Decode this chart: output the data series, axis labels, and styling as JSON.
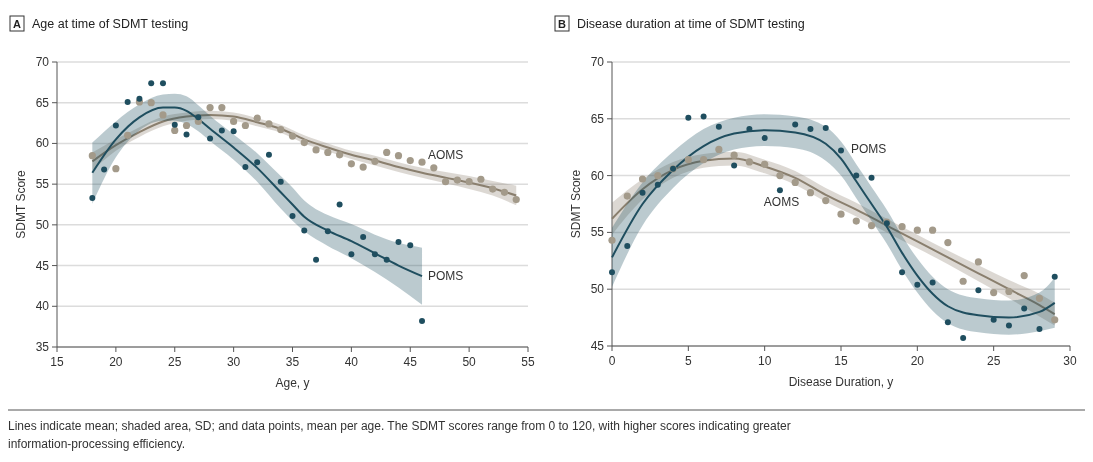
{
  "chart_data": [
    {
      "type": "scatter",
      "title": "Age at time of SDMT testing",
      "xlabel": "Age, y",
      "ylabel": "SDMT Score",
      "xlim": [
        15,
        55
      ],
      "xticks": [
        15,
        20,
        25,
        30,
        35,
        40,
        45,
        50,
        55
      ],
      "ylim": [
        35,
        70
      ],
      "yticks": [
        35,
        40,
        45,
        50,
        55,
        60,
        65,
        70
      ],
      "grid": "y",
      "marker": "circle",
      "annotations": [
        "A"
      ],
      "series": [
        {
          "type": "line",
          "name": "AOMS",
          "color": "#8a7f6e",
          "marker": "none",
          "x": [
            18,
            20,
            22,
            24,
            26,
            28,
            30,
            32,
            34,
            36,
            38,
            40,
            42,
            44,
            46,
            48,
            50,
            52,
            54
          ],
          "values": [
            57.8,
            59.8,
            61.4,
            62.7,
            63.3,
            63.5,
            63.3,
            62.6,
            61.8,
            60.5,
            59.5,
            58.6,
            57.9,
            57.1,
            56.4,
            55.8,
            55.2,
            54.5,
            53.6
          ],
          "lower": [
            56.7,
            59.1,
            60.8,
            62.1,
            62.8,
            63,
            62.8,
            62.1,
            61.3,
            60,
            59,
            58.1,
            57.3,
            56.5,
            55.8,
            55.1,
            54.4,
            53.6,
            52.4
          ],
          "upper": [
            58.9,
            60.5,
            62,
            63.3,
            63.8,
            64,
            63.8,
            63.1,
            62.3,
            61,
            60,
            59.1,
            58.5,
            57.7,
            57,
            56.5,
            56,
            55.4,
            54.8
          ]
        },
        {
          "type": "line",
          "name": "POMS",
          "color": "#1f4e5f",
          "marker": "none",
          "x": [
            18,
            20,
            22,
            24,
            25,
            26,
            27,
            28,
            30,
            32,
            34,
            35,
            36,
            38,
            40,
            42,
            44,
            46
          ],
          "values": [
            56.4,
            60.5,
            63.2,
            64.4,
            64.4,
            64,
            63,
            61.8,
            59.5,
            57,
            54,
            52.5,
            51,
            49.3,
            48,
            46.5,
            45,
            43.7
          ],
          "lower": [
            52.6,
            58.3,
            61.6,
            62.8,
            62.8,
            62.4,
            61.5,
            60.3,
            58,
            55.3,
            52,
            50.5,
            49.2,
            47.4,
            45.9,
            44.2,
            42.3,
            40.2
          ],
          "upper": [
            60.1,
            62.7,
            64.8,
            66,
            66.1,
            65.8,
            64.7,
            63.4,
            61.1,
            58.8,
            56,
            54.6,
            53,
            51.2,
            50.1,
            48.8,
            47.8,
            47.2
          ]
        },
        {
          "type": "scatter",
          "color": "#a39a8a",
          "x": [
            18,
            20,
            21,
            22,
            23,
            24,
            25,
            26,
            27,
            28,
            29,
            30,
            31,
            32,
            33,
            34,
            35,
            36,
            37,
            38,
            39,
            40,
            41,
            42,
            43,
            44,
            45,
            46,
            47,
            48,
            49,
            50,
            51,
            52,
            53,
            54
          ],
          "values": [
            58.5,
            56.9,
            61,
            65.1,
            65,
            63.5,
            61.6,
            62.2,
            62.7,
            64.4,
            64.4,
            62.7,
            62.2,
            63.1,
            62.4,
            61.7,
            60.9,
            60.1,
            59.2,
            58.9,
            58.6,
            57.5,
            57.1,
            57.8,
            58.9,
            58.5,
            57.9,
            57.7,
            57,
            55.3,
            55.5,
            55.3,
            55.6,
            54.4,
            54,
            53.1
          ]
        },
        {
          "type": "scatter",
          "color": "#1f4e5f",
          "x": [
            18,
            19,
            20,
            21,
            22,
            23,
            24,
            25,
            26,
            27,
            28,
            29,
            30,
            31,
            32,
            33,
            34,
            35,
            36,
            37,
            38,
            39,
            40,
            41,
            42,
            43,
            44,
            45,
            46
          ],
          "values": [
            53.3,
            56.8,
            62.2,
            65.1,
            65.5,
            67.4,
            67.4,
            62.3,
            61.1,
            63.2,
            60.6,
            61.6,
            61.5,
            57.1,
            57.7,
            58.6,
            55.3,
            51.1,
            49.3,
            45.7,
            49.2,
            52.5,
            46.4,
            48.5,
            46.4,
            45.7,
            47.9,
            47.5,
            38.2
          ]
        }
      ]
    },
    {
      "type": "scatter",
      "title": "Disease duration at time of SDMT testing",
      "xlabel": "Disease Duration, y",
      "ylabel": "SDMT Score",
      "xlim": [
        0,
        30
      ],
      "xticks": [
        0,
        5,
        10,
        15,
        20,
        25,
        30
      ],
      "ylim": [
        45,
        70
      ],
      "yticks": [
        45,
        50,
        55,
        60,
        65,
        70
      ],
      "grid": "y",
      "marker": "circle",
      "annotations": [
        "B",
        "Lines indicate mean; shaded area, SD; and data points, mean per age. The SDMT scores range from 0 to 120, with higher scores indicating greater information-processing efficiency."
      ],
      "series": [
        {
          "type": "line",
          "name": "AOMS",
          "color": "#8a7f6e",
          "marker": "none",
          "x": [
            0,
            2,
            4,
            6,
            8,
            10,
            12,
            14,
            16,
            18,
            20,
            22,
            24,
            26,
            28,
            29
          ],
          "values": [
            56.2,
            58.8,
            60.5,
            61.3,
            61.5,
            60.8,
            59.8,
            58.3,
            57,
            55.6,
            54.2,
            52.8,
            51.4,
            50,
            48.6,
            47.8
          ],
          "lower": [
            54.8,
            57.9,
            59.8,
            60.7,
            60.9,
            60.2,
            59.2,
            57.7,
            56.4,
            55,
            53.6,
            52.2,
            50.7,
            49.2,
            47.6,
            46.8
          ],
          "upper": [
            57.6,
            59.7,
            61.2,
            61.9,
            62.1,
            61.4,
            60.4,
            58.9,
            57.6,
            56.2,
            54.8,
            53.4,
            52.1,
            50.8,
            49.6,
            48.8
          ]
        },
        {
          "type": "line",
          "name": "POMS",
          "color": "#1f4e5f",
          "marker": "none",
          "x": [
            0,
            2,
            4,
            6,
            8,
            10,
            12,
            14,
            15,
            16,
            17,
            18,
            19,
            20,
            21,
            22,
            24,
            26,
            28,
            29
          ],
          "values": [
            52.8,
            57.5,
            60.5,
            62.6,
            63.7,
            64,
            63.8,
            62.8,
            61.5,
            59.5,
            57.5,
            55.5,
            53.2,
            51.2,
            49.6,
            48.5,
            47.7,
            47.5,
            48,
            48.8
          ],
          "lower": [
            50.2,
            55.6,
            58.9,
            61.1,
            62.3,
            62.6,
            62.4,
            61.3,
            60,
            58,
            56,
            54,
            51.7,
            49.7,
            48.1,
            47,
            46.2,
            46,
            46.3,
            46.6
          ],
          "upper": [
            55.4,
            59.4,
            62.1,
            64.1,
            65.1,
            65.4,
            65.2,
            64.3,
            63,
            61,
            59,
            57,
            54.7,
            52.7,
            51.1,
            50,
            49.2,
            49,
            49.7,
            51
          ]
        },
        {
          "type": "scatter",
          "color": "#a39a8a",
          "x": [
            0,
            1,
            2,
            3,
            4,
            5,
            6,
            7,
            8,
            9,
            10,
            11,
            12,
            13,
            14,
            15,
            16,
            17,
            18,
            19,
            20,
            21,
            22,
            23,
            24,
            25,
            26,
            27,
            28,
            29
          ],
          "values": [
            54.3,
            58.2,
            59.7,
            60,
            60.6,
            61.4,
            61.4,
            62.3,
            61.8,
            61.2,
            61,
            60,
            59.4,
            58.5,
            57.8,
            56.6,
            56,
            55.6,
            55.9,
            55.5,
            55.2,
            55.2,
            54.1,
            50.7,
            52.4,
            49.7,
            49.8,
            51.2,
            49.2,
            47.3
          ]
        },
        {
          "type": "scatter",
          "color": "#1f4e5f",
          "x": [
            0,
            1,
            2,
            3,
            4,
            5,
            6,
            7,
            8,
            9,
            10,
            11,
            12,
            13,
            14,
            15,
            16,
            17,
            18,
            19,
            20,
            21,
            22,
            23,
            24,
            25,
            26,
            27,
            28,
            29
          ],
          "values": [
            51.5,
            53.8,
            58.5,
            59.2,
            60.6,
            65.1,
            65.2,
            64.3,
            60.9,
            64.1,
            63.3,
            58.7,
            64.5,
            64.1,
            64.2,
            62.2,
            60,
            59.8,
            55.8,
            51.5,
            50.4,
            50.6,
            47.1,
            45.7,
            49.9,
            47.3,
            46.8,
            48.3,
            46.5,
            51.1
          ]
        }
      ]
    }
  ]
}
